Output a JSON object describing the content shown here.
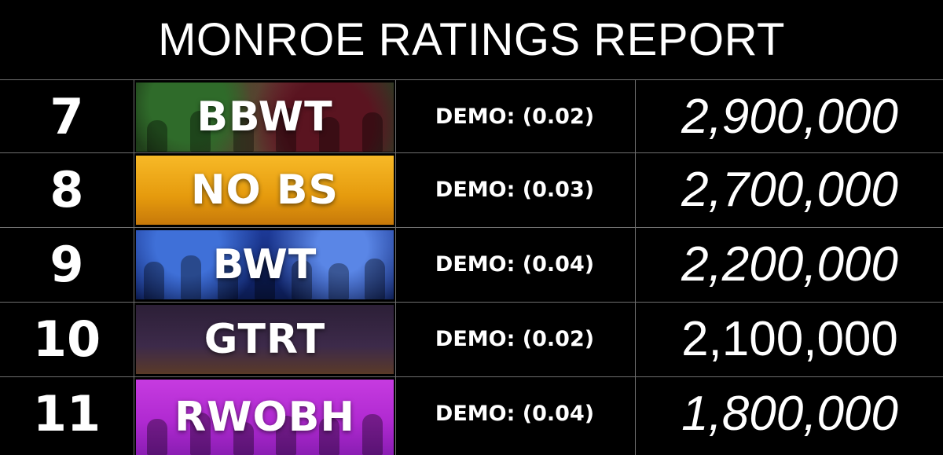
{
  "title": "MONROE RATINGS REPORT",
  "rows": [
    {
      "rank": "7",
      "show": "BBWT",
      "demo": "DEMO: (0.02)",
      "viewers": "2,900,000"
    },
    {
      "rank": "8",
      "show": "NO BS",
      "demo": "DEMO: (0.03)",
      "viewers": "2,700,000"
    },
    {
      "rank": "9",
      "show": "BWT",
      "demo": "DEMO: (0.04)",
      "viewers": "2,200,000"
    },
    {
      "rank": "10",
      "show": "GTRT",
      "demo": "DEMO: (0.02)",
      "viewers": "2,100,000"
    },
    {
      "rank": "11",
      "show": "RWOBH",
      "demo": "DEMO: (0.04)",
      "viewers": "1,800,000"
    }
  ],
  "colors": {
    "background": "#000000",
    "text": "#ffffff",
    "grid": "#6f6f6f"
  }
}
